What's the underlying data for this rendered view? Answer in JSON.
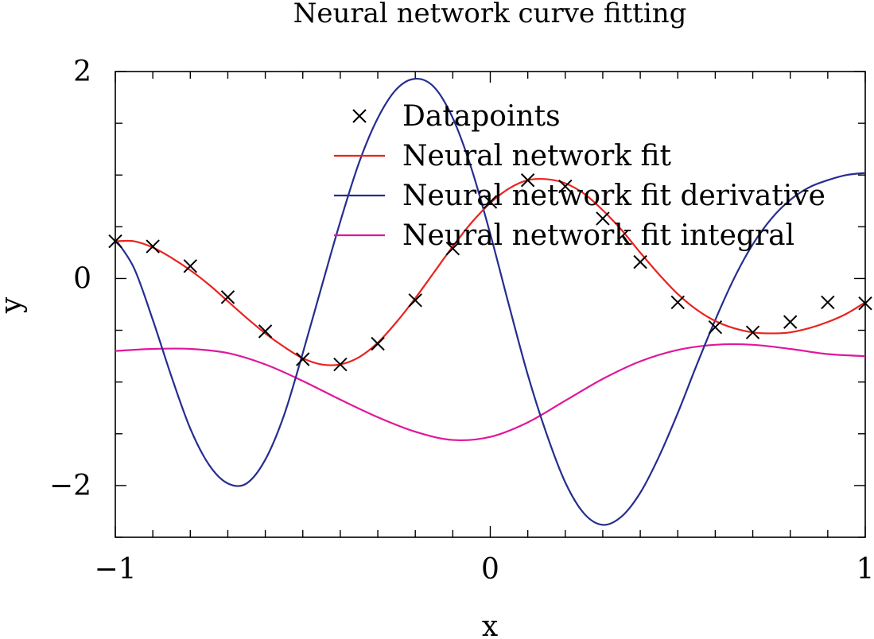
{
  "chart_data": {
    "type": "line",
    "title": "Neural network curve fitting",
    "xlabel": "x",
    "ylabel": "y",
    "xlim": [
      -1,
      1
    ],
    "ylim": [
      -2.5,
      2
    ],
    "x_ticks": [
      -1,
      0,
      1
    ],
    "x_tick_labels": [
      "−1",
      "0",
      "1"
    ],
    "y_ticks": [
      -2,
      0,
      2
    ],
    "y_tick_labels": [
      "−2",
      "0",
      "2"
    ],
    "grid": false,
    "legend_position": "top-center",
    "series": [
      {
        "name": "Datapoints",
        "kind": "markers",
        "marker": "x",
        "color": "#000000",
        "x": [
          -1.0,
          -0.9,
          -0.8,
          -0.7,
          -0.6,
          -0.5,
          -0.4,
          -0.3,
          -0.2,
          -0.1,
          0.0,
          0.1,
          0.2,
          0.3,
          0.4,
          0.5,
          0.6,
          0.7,
          0.8,
          0.9,
          1.0
        ],
        "y": [
          0.36,
          0.31,
          0.12,
          -0.18,
          -0.51,
          -0.78,
          -0.83,
          -0.63,
          -0.21,
          0.29,
          0.74,
          0.95,
          0.89,
          0.58,
          0.16,
          -0.23,
          -0.47,
          -0.52,
          -0.42,
          -0.23,
          -0.24
        ]
      },
      {
        "name": "Neural network fit",
        "kind": "line",
        "color": "#e8231f",
        "x": [
          -1.0,
          -0.95,
          -0.9,
          -0.85,
          -0.8,
          -0.75,
          -0.7,
          -0.65,
          -0.6,
          -0.55,
          -0.5,
          -0.45,
          -0.4,
          -0.35,
          -0.3,
          -0.25,
          -0.2,
          -0.15,
          -0.1,
          -0.05,
          0.0,
          0.05,
          0.1,
          0.15,
          0.2,
          0.25,
          0.3,
          0.35,
          0.4,
          0.45,
          0.5,
          0.55,
          0.6,
          0.65,
          0.7,
          0.75,
          0.8,
          0.85,
          0.9,
          0.95,
          1.0
        ],
        "y": [
          0.36,
          0.36,
          0.3,
          0.2,
          0.08,
          -0.06,
          -0.22,
          -0.38,
          -0.53,
          -0.66,
          -0.77,
          -0.83,
          -0.83,
          -0.76,
          -0.62,
          -0.42,
          -0.19,
          0.06,
          0.31,
          0.54,
          0.73,
          0.87,
          0.95,
          0.96,
          0.92,
          0.82,
          0.66,
          0.47,
          0.25,
          0.04,
          -0.15,
          -0.3,
          -0.41,
          -0.48,
          -0.52,
          -0.53,
          -0.52,
          -0.48,
          -0.42,
          -0.34,
          -0.23
        ]
      },
      {
        "name": "Neural network fit derivative",
        "kind": "line",
        "color": "#262d8f",
        "x": [
          -1.0,
          -0.95,
          -0.9,
          -0.85,
          -0.8,
          -0.75,
          -0.7,
          -0.65,
          -0.6,
          -0.55,
          -0.5,
          -0.45,
          -0.4,
          -0.35,
          -0.3,
          -0.25,
          -0.2,
          -0.15,
          -0.1,
          -0.05,
          0.0,
          0.05,
          0.1,
          0.15,
          0.2,
          0.25,
          0.3,
          0.35,
          0.4,
          0.45,
          0.5,
          0.55,
          0.6,
          0.65,
          0.7,
          0.75,
          0.8,
          0.85,
          0.9,
          0.95,
          1.0
        ],
        "y": [
          0.38,
          0.1,
          -0.4,
          -0.95,
          -1.45,
          -1.8,
          -1.98,
          -1.98,
          -1.75,
          -1.32,
          -0.72,
          -0.08,
          0.55,
          1.12,
          1.55,
          1.83,
          1.93,
          1.85,
          1.55,
          1.06,
          0.43,
          -0.26,
          -0.93,
          -1.5,
          -1.97,
          -2.27,
          -2.38,
          -2.3,
          -2.07,
          -1.72,
          -1.3,
          -0.84,
          -0.4,
          0.0,
          0.33,
          0.58,
          0.76,
          0.88,
          0.95,
          1.0,
          1.02
        ]
      },
      {
        "name": "Neural network fit integral",
        "kind": "line",
        "color": "#e0179b",
        "x": [
          -1.0,
          -0.9,
          -0.8,
          -0.7,
          -0.6,
          -0.5,
          -0.4,
          -0.3,
          -0.2,
          -0.1,
          0.0,
          0.1,
          0.2,
          0.3,
          0.4,
          0.5,
          0.6,
          0.7,
          0.8,
          0.9,
          1.0
        ],
        "y": [
          -0.7,
          -0.68,
          -0.68,
          -0.72,
          -0.83,
          -0.99,
          -1.17,
          -1.34,
          -1.48,
          -1.56,
          -1.53,
          -1.39,
          -1.18,
          -0.97,
          -0.8,
          -0.69,
          -0.64,
          -0.64,
          -0.68,
          -0.73,
          -0.75
        ]
      }
    ]
  }
}
